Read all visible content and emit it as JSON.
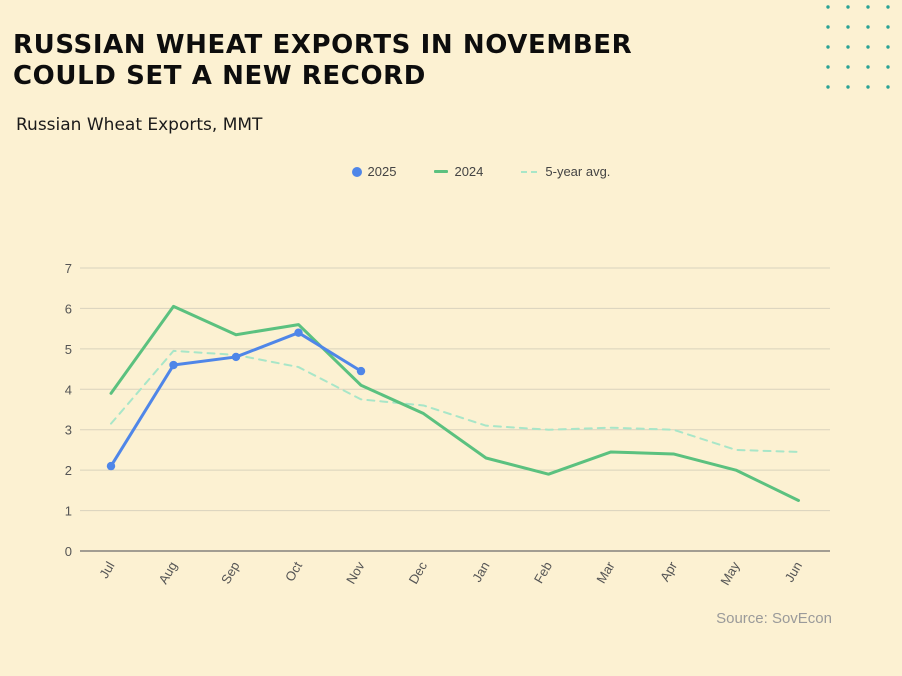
{
  "header": {
    "title_line1": "RUSSIAN WHEAT EXPORTS IN NOVEMBER",
    "title_line2": "COULD SET A NEW RECORD",
    "subtitle": "Russian Wheat Exports, MMT"
  },
  "source": "Source: SovEcon",
  "colors": {
    "background": "#fcf1d2",
    "series_2025": "#4f86e8",
    "series_2024": "#5bc17f",
    "series_avg": "#a8e6c8",
    "grid": "#d9d2bd",
    "decor_dots": "#2aa396"
  },
  "chart_data": {
    "type": "line",
    "title": "Russian Wheat Exports, MMT",
    "categories": [
      "Jul",
      "Aug",
      "Sep",
      "Oct",
      "Nov",
      "Dec",
      "Jan",
      "Feb",
      "Mar",
      "Apr",
      "May",
      "Jun"
    ],
    "series": [
      {
        "name": "2025",
        "values": [
          2.1,
          4.6,
          4.8,
          5.4,
          4.45,
          null,
          null,
          null,
          null,
          null,
          null,
          null
        ],
        "style": "solid-markers"
      },
      {
        "name": "2024",
        "values": [
          3.9,
          6.05,
          5.35,
          5.6,
          4.1,
          3.4,
          2.3,
          1.9,
          2.45,
          2.4,
          2.0,
          1.25
        ],
        "style": "solid"
      },
      {
        "name": "5-year avg.",
        "values": [
          3.15,
          4.95,
          4.85,
          4.55,
          3.75,
          3.6,
          3.1,
          3.0,
          3.05,
          3.0,
          2.5,
          2.45
        ],
        "style": "dashed"
      }
    ],
    "yticks": [
      0,
      1,
      2,
      3,
      4,
      5,
      6,
      7
    ],
    "ylim": [
      0,
      7
    ],
    "xlabel": "",
    "ylabel": "",
    "grid": true,
    "legend_position": "top-center"
  }
}
